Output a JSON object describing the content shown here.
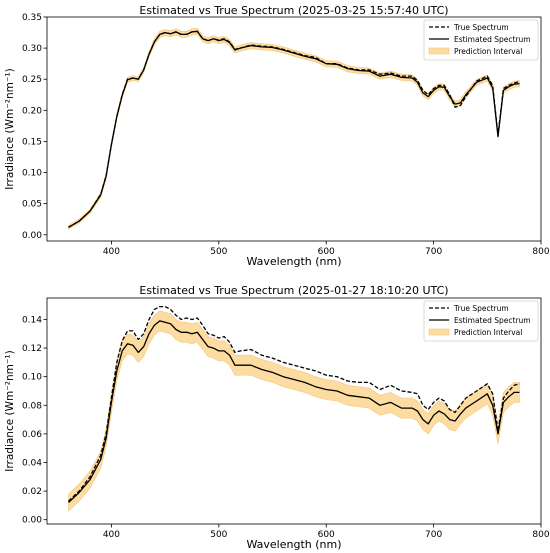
{
  "chart_data": [
    {
      "type": "line",
      "title": "Estimated vs True Spectrum (2025-03-25 15:57:40 UTC)",
      "xlabel": "Wavelength (nm)",
      "ylabel": "Irradiance (Wm⁻²nm⁻¹)",
      "xlim": [
        340,
        800
      ],
      "ylim": [
        -0.01,
        0.35
      ],
      "xticks": [
        400,
        500,
        600,
        700,
        800
      ],
      "xtick_labels": [
        "400",
        "500",
        "600",
        "700",
        "800"
      ],
      "yticks": [
        0.0,
        0.05,
        0.1,
        0.15,
        0.2,
        0.25,
        0.3,
        0.35
      ],
      "ytick_labels": [
        "0.00",
        "0.05",
        "0.10",
        "0.15",
        "0.20",
        "0.25",
        "0.30",
        "0.35"
      ],
      "grid": false,
      "legend_position": "top-right",
      "legend": [
        "True Spectrum",
        "Estimated Spectrum",
        "Prediction Interval"
      ],
      "x": [
        360,
        370,
        380,
        390,
        395,
        400,
        405,
        410,
        415,
        420,
        425,
        430,
        435,
        440,
        445,
        450,
        455,
        460,
        465,
        470,
        475,
        480,
        485,
        490,
        495,
        500,
        505,
        510,
        515,
        520,
        530,
        540,
        550,
        560,
        570,
        580,
        590,
        600,
        610,
        620,
        630,
        640,
        650,
        660,
        670,
        680,
        685,
        690,
        695,
        700,
        705,
        710,
        715,
        720,
        725,
        730,
        740,
        750,
        755,
        760,
        765,
        770,
        775,
        780
      ],
      "series": [
        {
          "name": "True Spectrum",
          "style": "dashed",
          "color": "#000000",
          "values": [
            0.012,
            0.022,
            0.038,
            0.065,
            0.095,
            0.145,
            0.19,
            0.225,
            0.25,
            0.252,
            0.25,
            0.265,
            0.29,
            0.31,
            0.322,
            0.325,
            0.323,
            0.326,
            0.322,
            0.322,
            0.326,
            0.327,
            0.315,
            0.312,
            0.315,
            0.313,
            0.315,
            0.31,
            0.298,
            0.3,
            0.305,
            0.303,
            0.302,
            0.298,
            0.293,
            0.288,
            0.285,
            0.275,
            0.275,
            0.268,
            0.265,
            0.265,
            0.258,
            0.26,
            0.255,
            0.255,
            0.248,
            0.232,
            0.225,
            0.235,
            0.24,
            0.24,
            0.225,
            0.205,
            0.208,
            0.222,
            0.247,
            0.255,
            0.24,
            0.16,
            0.235,
            0.24,
            0.244,
            0.246
          ]
        },
        {
          "name": "Estimated Spectrum",
          "style": "solid",
          "color": "#000000",
          "values": [
            0.012,
            0.022,
            0.038,
            0.064,
            0.094,
            0.145,
            0.19,
            0.224,
            0.249,
            0.252,
            0.25,
            0.265,
            0.29,
            0.31,
            0.322,
            0.325,
            0.323,
            0.326,
            0.322,
            0.322,
            0.326,
            0.327,
            0.315,
            0.312,
            0.315,
            0.312,
            0.314,
            0.309,
            0.297,
            0.3,
            0.304,
            0.302,
            0.301,
            0.297,
            0.292,
            0.287,
            0.283,
            0.275,
            0.274,
            0.267,
            0.264,
            0.263,
            0.255,
            0.258,
            0.253,
            0.252,
            0.245,
            0.228,
            0.222,
            0.232,
            0.238,
            0.237,
            0.222,
            0.21,
            0.212,
            0.225,
            0.245,
            0.252,
            0.236,
            0.158,
            0.232,
            0.238,
            0.242,
            0.243
          ]
        }
      ],
      "interval": {
        "name": "Prediction Interval",
        "color": "#fcdca0",
        "edge_color": "#f3c77a",
        "half_width": [
          0.003,
          0.003,
          0.003,
          0.004,
          0.004,
          0.004,
          0.004,
          0.004,
          0.004,
          0.004,
          0.004,
          0.004,
          0.004,
          0.005,
          0.005,
          0.005,
          0.005,
          0.005,
          0.005,
          0.005,
          0.005,
          0.005,
          0.005,
          0.005,
          0.005,
          0.005,
          0.005,
          0.005,
          0.005,
          0.005,
          0.005,
          0.005,
          0.005,
          0.005,
          0.005,
          0.005,
          0.005,
          0.005,
          0.005,
          0.005,
          0.005,
          0.005,
          0.005,
          0.005,
          0.005,
          0.005,
          0.005,
          0.005,
          0.005,
          0.005,
          0.005,
          0.005,
          0.005,
          0.005,
          0.005,
          0.005,
          0.005,
          0.005,
          0.005,
          0.005,
          0.005,
          0.005,
          0.005,
          0.005
        ]
      }
    },
    {
      "type": "line",
      "title": "Estimated vs True Spectrum (2025-01-27 18:10:20 UTC)",
      "xlabel": "Wavelength (nm)",
      "ylabel": "Irradiance (Wm⁻²nm⁻¹)",
      "xlim": [
        340,
        800
      ],
      "ylim": [
        -0.003,
        0.155
      ],
      "xticks": [
        400,
        500,
        600,
        700,
        800
      ],
      "xtick_labels": [
        "400",
        "500",
        "600",
        "700",
        "800"
      ],
      "yticks": [
        0.0,
        0.02,
        0.04,
        0.06,
        0.08,
        0.1,
        0.12,
        0.14
      ],
      "ytick_labels": [
        "0.00",
        "0.02",
        "0.04",
        "0.06",
        "0.08",
        "0.10",
        "0.12",
        "0.14"
      ],
      "grid": false,
      "legend_position": "top-right",
      "legend": [
        "True Spectrum",
        "Estimated Spectrum",
        "Prediction Interval"
      ],
      "x": [
        360,
        370,
        380,
        390,
        395,
        400,
        405,
        410,
        415,
        420,
        425,
        430,
        435,
        440,
        445,
        450,
        455,
        460,
        465,
        470,
        475,
        480,
        485,
        490,
        495,
        500,
        505,
        510,
        515,
        520,
        530,
        540,
        550,
        560,
        570,
        580,
        590,
        600,
        610,
        620,
        630,
        640,
        650,
        660,
        670,
        680,
        685,
        690,
        695,
        700,
        705,
        710,
        715,
        720,
        725,
        730,
        740,
        750,
        755,
        760,
        765,
        770,
        775,
        780
      ],
      "series": [
        {
          "name": "True Spectrum",
          "style": "dashed",
          "color": "#000000",
          "values": [
            0.013,
            0.02,
            0.03,
            0.045,
            0.06,
            0.085,
            0.11,
            0.125,
            0.132,
            0.132,
            0.126,
            0.13,
            0.14,
            0.147,
            0.149,
            0.149,
            0.147,
            0.143,
            0.14,
            0.141,
            0.14,
            0.141,
            0.136,
            0.13,
            0.129,
            0.127,
            0.128,
            0.124,
            0.117,
            0.118,
            0.119,
            0.115,
            0.113,
            0.11,
            0.108,
            0.106,
            0.104,
            0.101,
            0.1,
            0.097,
            0.096,
            0.096,
            0.091,
            0.094,
            0.09,
            0.089,
            0.088,
            0.08,
            0.077,
            0.082,
            0.085,
            0.083,
            0.077,
            0.075,
            0.08,
            0.085,
            0.09,
            0.095,
            0.088,
            0.062,
            0.085,
            0.09,
            0.094,
            0.095
          ]
        },
        {
          "name": "Estimated Spectrum",
          "style": "solid",
          "color": "#000000",
          "values": [
            0.012,
            0.019,
            0.028,
            0.042,
            0.057,
            0.082,
            0.104,
            0.118,
            0.123,
            0.122,
            0.117,
            0.121,
            0.13,
            0.136,
            0.139,
            0.138,
            0.137,
            0.133,
            0.131,
            0.131,
            0.13,
            0.131,
            0.126,
            0.121,
            0.12,
            0.118,
            0.118,
            0.115,
            0.108,
            0.108,
            0.108,
            0.105,
            0.103,
            0.1,
            0.098,
            0.096,
            0.093,
            0.091,
            0.09,
            0.087,
            0.086,
            0.085,
            0.08,
            0.082,
            0.078,
            0.078,
            0.076,
            0.07,
            0.067,
            0.073,
            0.076,
            0.074,
            0.07,
            0.069,
            0.074,
            0.078,
            0.083,
            0.088,
            0.08,
            0.06,
            0.082,
            0.086,
            0.089,
            0.089
          ]
        }
      ],
      "interval": {
        "name": "Prediction Interval",
        "color": "#fcdca0",
        "edge_color": "#f3c77a",
        "half_width": [
          0.006,
          0.006,
          0.006,
          0.006,
          0.006,
          0.007,
          0.007,
          0.007,
          0.007,
          0.007,
          0.007,
          0.007,
          0.007,
          0.007,
          0.007,
          0.007,
          0.007,
          0.007,
          0.007,
          0.007,
          0.007,
          0.007,
          0.007,
          0.007,
          0.007,
          0.007,
          0.007,
          0.007,
          0.007,
          0.007,
          0.007,
          0.007,
          0.007,
          0.007,
          0.007,
          0.007,
          0.007,
          0.007,
          0.007,
          0.007,
          0.007,
          0.007,
          0.007,
          0.007,
          0.007,
          0.007,
          0.007,
          0.007,
          0.007,
          0.007,
          0.007,
          0.007,
          0.007,
          0.007,
          0.007,
          0.007,
          0.007,
          0.007,
          0.007,
          0.007,
          0.007,
          0.007,
          0.007,
          0.007
        ]
      }
    }
  ]
}
